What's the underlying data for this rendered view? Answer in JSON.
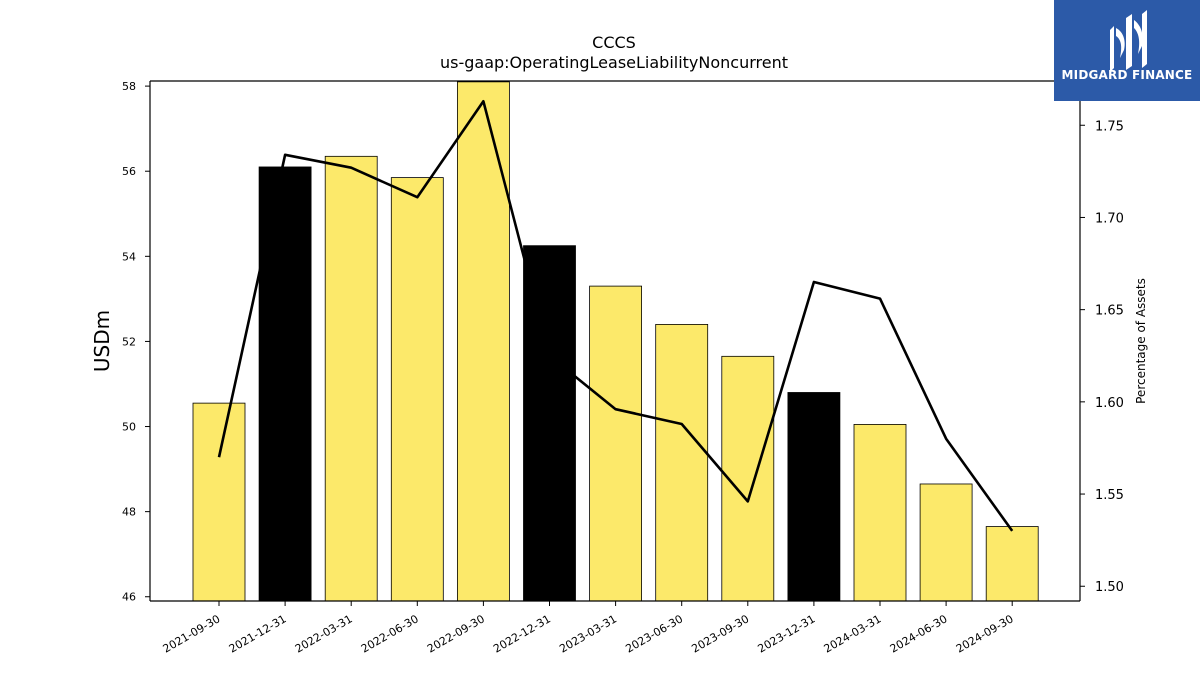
{
  "title": "CCCS",
  "subtitle": "us-gaap:OperatingLeaseLiabilityNoncurrent",
  "logo": {
    "text": "MIDGARD FINANCE",
    "icon": "midgard-logo-icon",
    "background": "#2c5aa8"
  },
  "chart_data": {
    "type": "bar",
    "categories": [
      "2021-09-30",
      "2021-12-31",
      "2022-03-31",
      "2022-06-30",
      "2022-09-30",
      "2022-12-31",
      "2023-03-31",
      "2023-06-30",
      "2023-09-30",
      "2023-12-31",
      "2024-03-31",
      "2024-06-30",
      "2024-09-30"
    ],
    "series": [
      {
        "name": "USDm",
        "type": "bar",
        "axis": "left",
        "values": [
          50.55,
          56.1,
          56.35,
          55.85,
          58.1,
          54.25,
          53.3,
          52.4,
          51.65,
          50.8,
          50.05,
          48.65,
          47.65
        ],
        "bar_colors": [
          "#fce96a",
          "#000000",
          "#fce96a",
          "#fce96a",
          "#fce96a",
          "#000000",
          "#fce96a",
          "#fce96a",
          "#fce96a",
          "#000000",
          "#fce96a",
          "#fce96a",
          "#fce96a"
        ]
      },
      {
        "name": "Percentage of Assets",
        "type": "line",
        "axis": "right",
        "values": [
          1.57,
          1.734,
          1.727,
          1.711,
          1.763,
          1.625,
          1.596,
          1.588,
          1.546,
          1.665,
          1.656,
          1.58,
          1.53
        ],
        "color": "#000000"
      }
    ],
    "ylabel": "USDm",
    "ylabel_right": "Percentage of Assets",
    "ylim": [
      45.9,
      58.12
    ],
    "ylim_right": [
      1.492,
      1.774
    ],
    "yticks": [
      46,
      48,
      50,
      52,
      54,
      56,
      58
    ],
    "yticks_right": [
      1.5,
      1.55,
      1.6,
      1.65,
      1.7,
      1.75
    ],
    "ytick_labels_right": [
      "1.50",
      "1.55",
      "1.60",
      "1.65",
      "1.70",
      "1.75"
    ],
    "grid": false,
    "legend": "none"
  }
}
